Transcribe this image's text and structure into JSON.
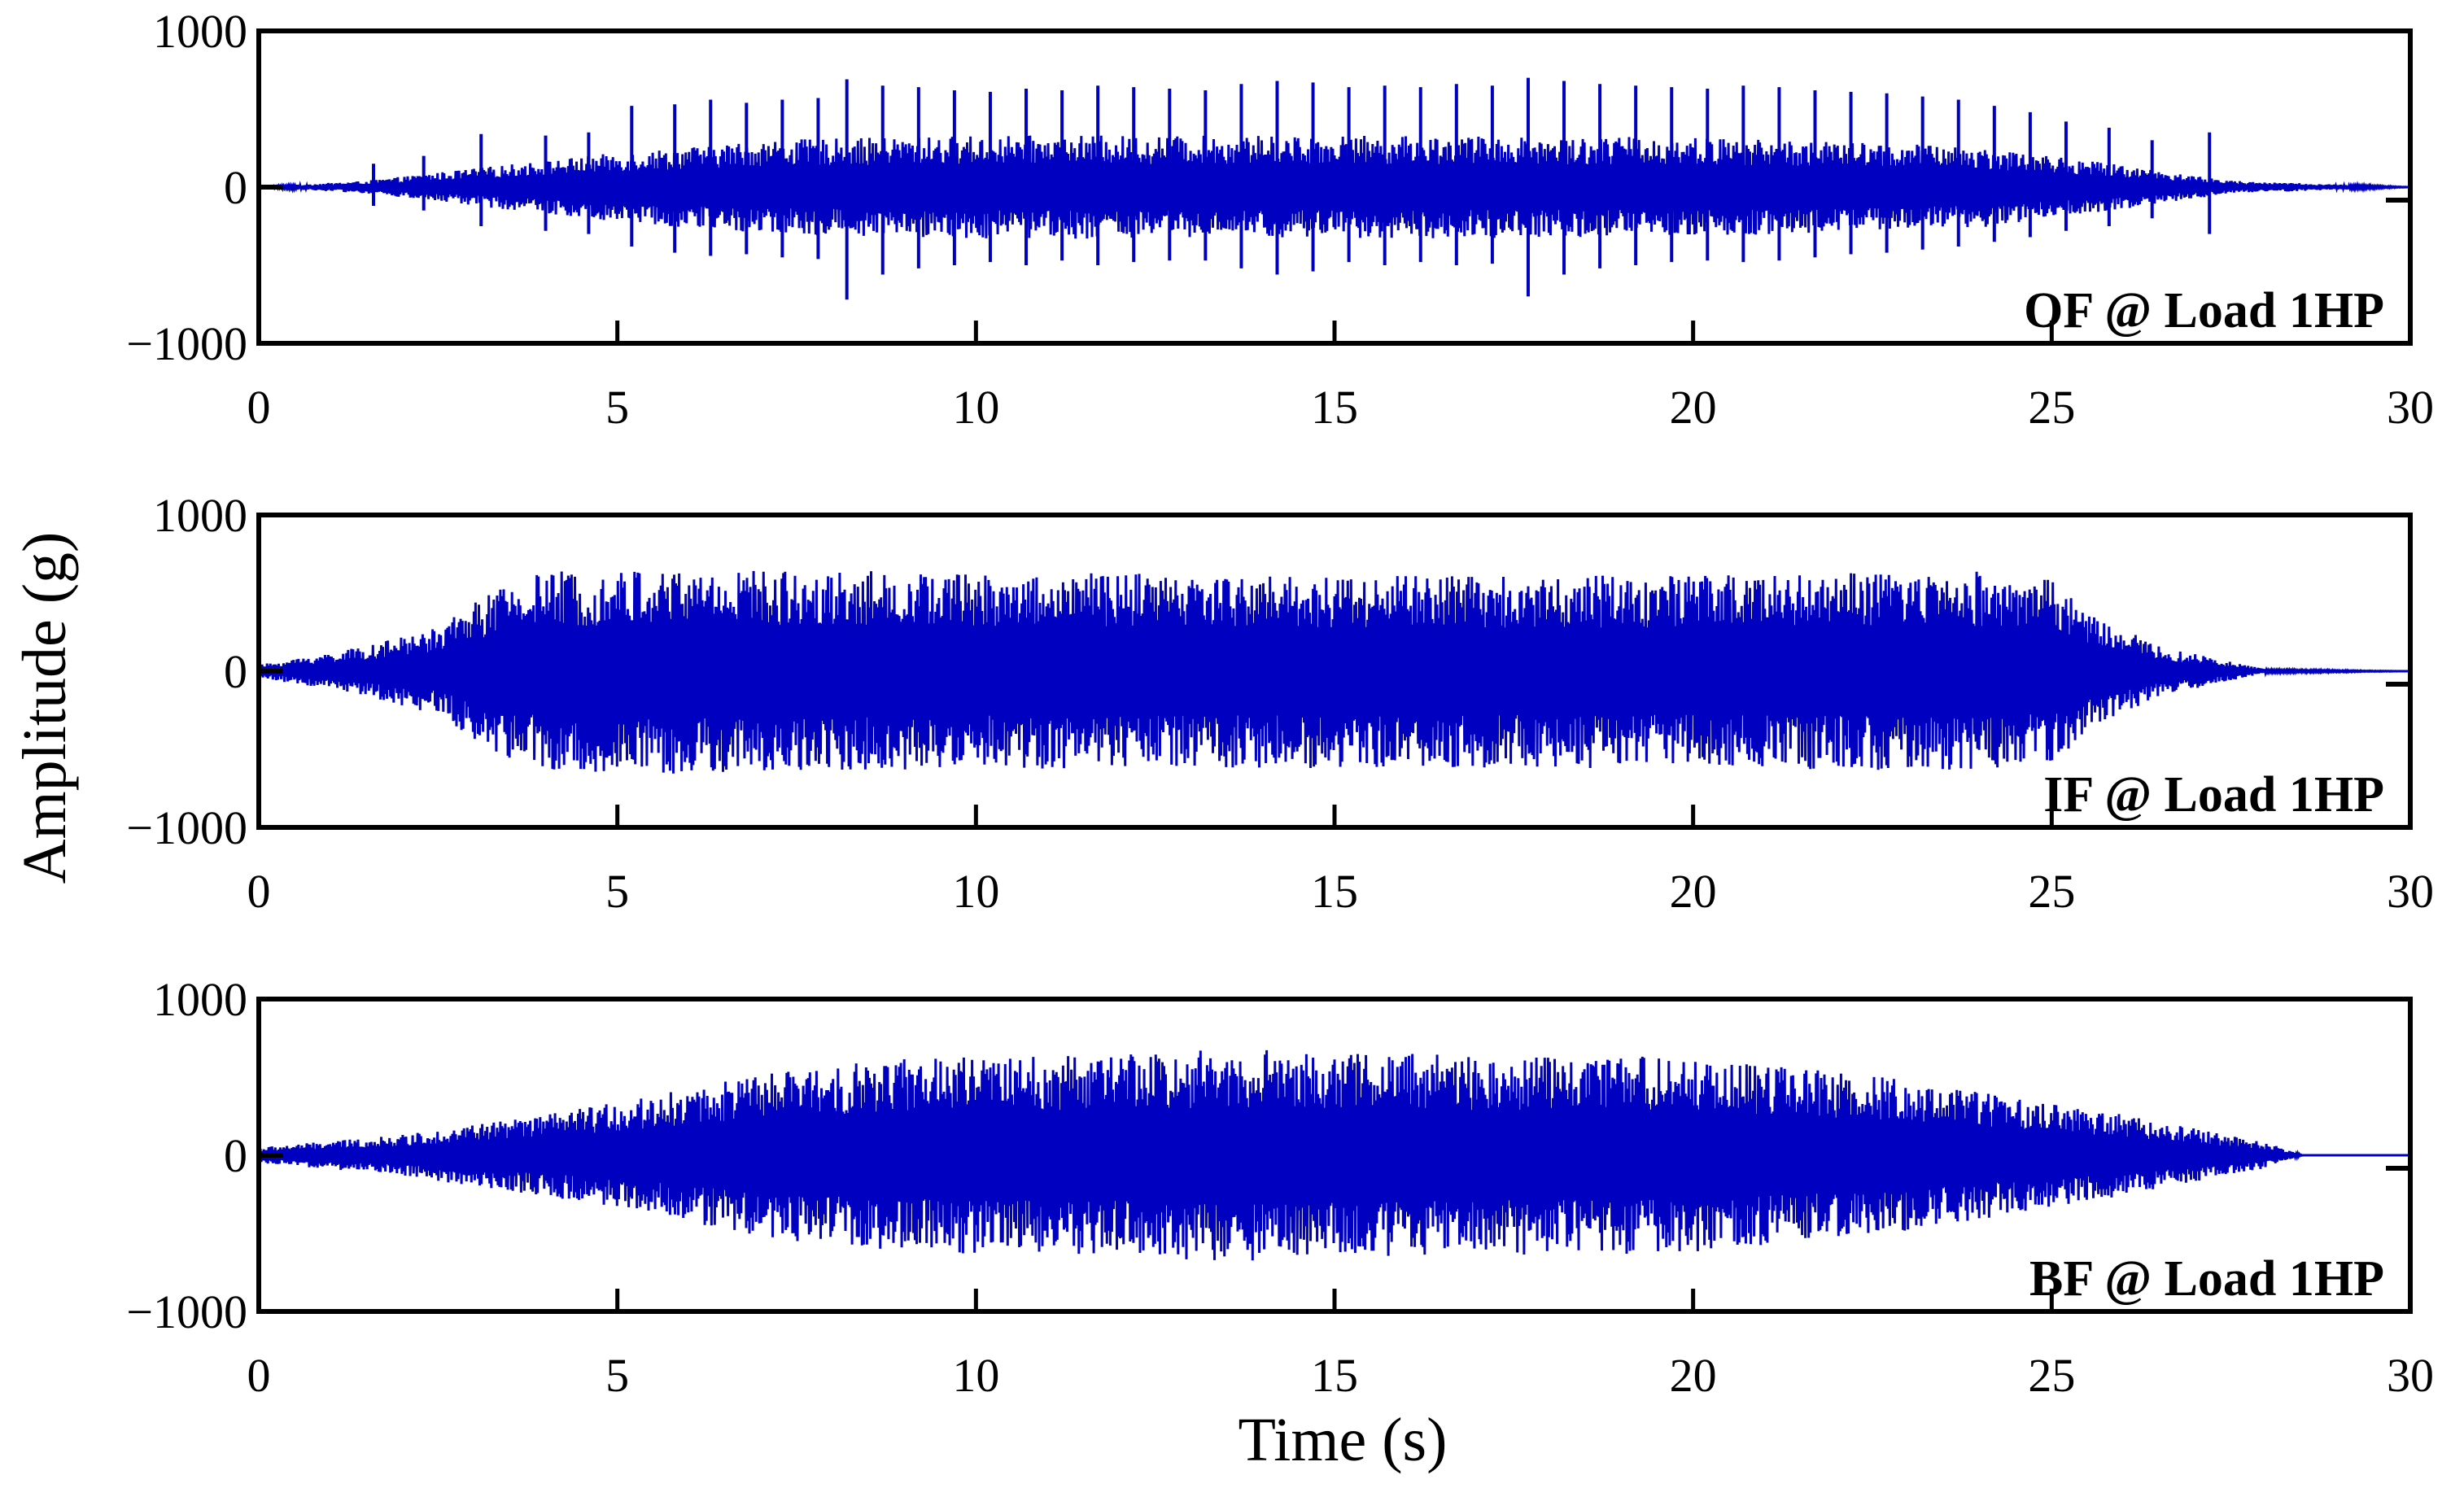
{
  "figure": {
    "ylabel": "Amplitude (g)",
    "xlabel": "Time (s)"
  },
  "colors": {
    "signal": "#0000C0",
    "axes": "#000000"
  },
  "chart_data": [
    {
      "type": "line",
      "annotation": "OF @ Load 1HP",
      "xlim": [
        0,
        30
      ],
      "ylim": [
        -1000,
        1000
      ],
      "x_ticks": [
        "0",
        "5",
        "10",
        "15",
        "20",
        "25",
        "30"
      ],
      "y_ticks": [
        "1000",
        "0",
        "-1000"
      ],
      "envelope": {
        "t": [
          0,
          1.5,
          3,
          5,
          7,
          10,
          15,
          20,
          24,
          26,
          27.5,
          30
        ],
        "amplitude": [
          0,
          40,
          120,
          220,
          300,
          330,
          330,
          320,
          260,
          140,
          40,
          0
        ]
      },
      "impulses": {
        "t": [
          1.6,
          2.3,
          3.1,
          4.0,
          4.6,
          5.2,
          5.8,
          6.3,
          6.8,
          7.3,
          7.8,
          8.2,
          8.7,
          9.2,
          9.7,
          10.2,
          10.7,
          11.2,
          11.7,
          12.2,
          12.7,
          13.2,
          13.7,
          14.2,
          14.7,
          15.2,
          15.7,
          16.2,
          16.7,
          17.2,
          17.7,
          18.2,
          18.7,
          19.2,
          19.7,
          20.2,
          20.7,
          21.2,
          21.7,
          22.2,
          22.7,
          23.2,
          23.7,
          24.2,
          24.7,
          25.2,
          25.8,
          26.4,
          27.2
        ],
        "peak": [
          150,
          200,
          340,
          330,
          350,
          520,
          530,
          560,
          540,
          560,
          570,
          690,
          650,
          640,
          620,
          610,
          630,
          620,
          650,
          640,
          630,
          620,
          660,
          680,
          670,
          640,
          650,
          640,
          660,
          650,
          700,
          680,
          660,
          650,
          640,
          630,
          650,
          640,
          620,
          610,
          600,
          580,
          560,
          520,
          480,
          420,
          380,
          300,
          350
        ],
        "trough": [
          -120,
          -150,
          -250,
          -280,
          -300,
          -380,
          -420,
          -440,
          -430,
          -450,
          -460,
          -720,
          -560,
          -520,
          -500,
          -480,
          -500,
          -470,
          -500,
          -480,
          -470,
          -470,
          -520,
          -560,
          -540,
          -480,
          -500,
          -480,
          -500,
          -490,
          -700,
          -560,
          -520,
          -500,
          -480,
          -470,
          -480,
          -470,
          -450,
          -430,
          -420,
          -400,
          -380,
          -350,
          -320,
          -280,
          -250,
          -200,
          -300
        ]
      }
    },
    {
      "type": "line",
      "annotation": "IF @ Load 1HP",
      "xlim": [
        0,
        30
      ],
      "ylim": [
        -1000,
        1000
      ],
      "x_ticks": [
        "0",
        "5",
        "10",
        "15",
        "20",
        "25",
        "30"
      ],
      "y_ticks": [
        "1000",
        "0",
        "-1000"
      ],
      "envelope": {
        "t": [
          0,
          0.5,
          1.5,
          2.5,
          3.0,
          3.6,
          4.0,
          6,
          10,
          15,
          20,
          24,
          25.0,
          25.5,
          26.5,
          27.5,
          28,
          30
        ],
        "amplitude": [
          40,
          80,
          160,
          280,
          450,
          580,
          640,
          660,
          630,
          620,
          620,
          640,
          600,
          380,
          160,
          60,
          10,
          0
        ]
      }
    },
    {
      "type": "line",
      "annotation": "BF @ Load 1HP",
      "xlim": [
        0,
        30
      ],
      "ylim": [
        -1000,
        1000
      ],
      "x_ticks": [
        "0",
        "5",
        "10",
        "15",
        "20",
        "25",
        "30"
      ],
      "y_ticks": [
        "1000",
        "0",
        "-1000"
      ],
      "envelope": {
        "t": [
          0,
          1,
          2,
          3,
          4,
          5,
          6,
          7,
          8,
          9,
          10,
          12,
          13.5,
          15,
          17,
          19,
          20,
          21,
          22,
          23,
          24,
          25,
          26,
          27,
          28,
          28.5,
          30
        ],
        "amplitude": [
          50,
          90,
          130,
          200,
          260,
          340,
          430,
          520,
          580,
          620,
          630,
          650,
          680,
          660,
          640,
          640,
          620,
          580,
          530,
          480,
          410,
          330,
          260,
          170,
          80,
          0,
          0
        ]
      }
    }
  ]
}
